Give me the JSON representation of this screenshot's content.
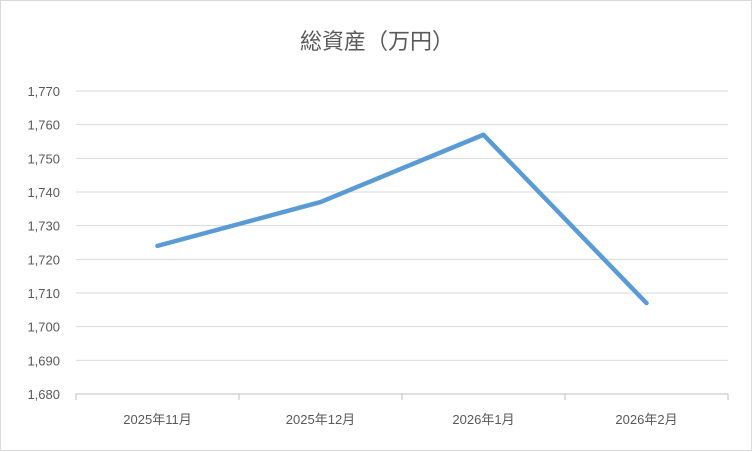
{
  "chart_data": {
    "type": "line",
    "title": "総資産（万円）",
    "categories": [
      "2025年11月",
      "2025年12月",
      "2026年1月",
      "2026年2月"
    ],
    "series": [
      {
        "values": [
          1724,
          1737,
          1757,
          1707
        ],
        "color": "#5B9BD5"
      }
    ],
    "ylim": [
      1680,
      1770
    ],
    "yticks": [
      1680,
      1690,
      1700,
      1710,
      1720,
      1730,
      1740,
      1750,
      1760,
      1770
    ],
    "ytick_labels": [
      "1,680",
      "1,690",
      "1,700",
      "1,710",
      "1,720",
      "1,730",
      "1,740",
      "1,750",
      "1,760",
      "1,770"
    ],
    "grid": true,
    "legend": "none",
    "xlabel": "",
    "ylabel": ""
  }
}
